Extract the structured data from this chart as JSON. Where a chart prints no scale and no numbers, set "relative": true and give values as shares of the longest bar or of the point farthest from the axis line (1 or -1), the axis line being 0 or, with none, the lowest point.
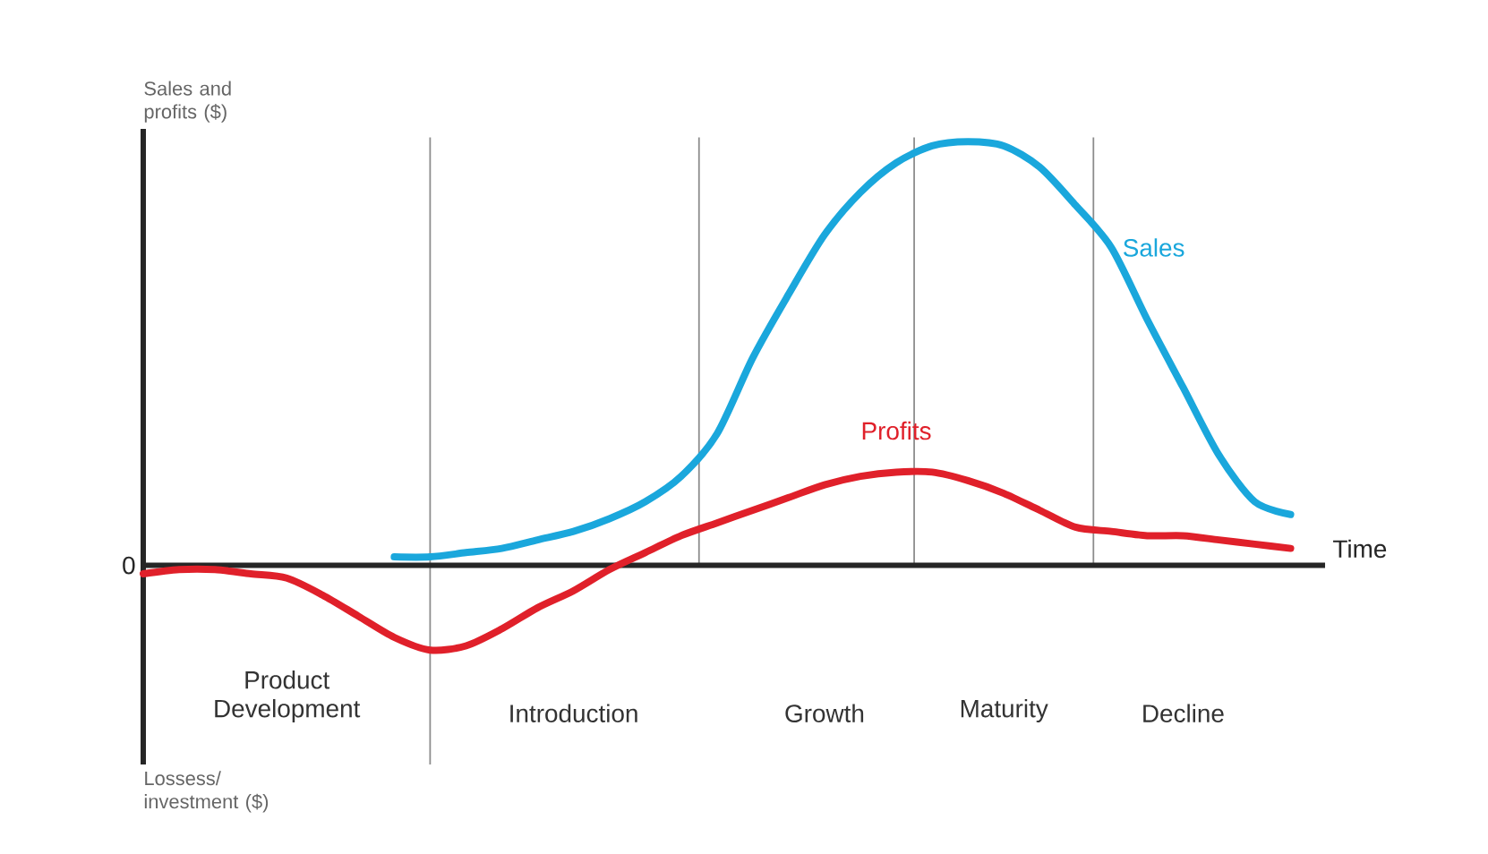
{
  "chart_data": {
    "type": "line",
    "relative": true,
    "xlabel": "Time",
    "ylabel": "Sales and profits ($)",
    "annotations": [
      "Lossess/ investment ($)",
      "0"
    ],
    "categories": [
      null,
      null,
      null,
      null,
      "Product Development",
      null,
      null,
      null,
      null,
      null,
      null,
      null,
      "Introduction",
      null,
      null,
      null,
      null,
      null,
      null,
      "Growth",
      null,
      null,
      null,
      null,
      "Maturity",
      null,
      null,
      null,
      null,
      "Decline",
      null,
      null,
      null
    ],
    "series": [
      {
        "name": "Sales",
        "color": "#1aa7dc",
        "values": [
          null,
          null,
          null,
          null,
          null,
          null,
          null,
          0.02,
          0.02,
          0.03,
          0.04,
          0.06,
          0.08,
          0.11,
          0.15,
          0.21,
          0.31,
          0.49,
          0.64,
          0.78,
          0.88,
          0.95,
          0.99,
          1.0,
          0.99,
          0.94,
          0.85,
          0.75,
          0.58,
          0.42,
          0.26,
          0.15,
          0.12
        ]
      },
      {
        "name": "Profits",
        "color": "#e0202a",
        "values": [
          -0.02,
          -0.01,
          -0.01,
          -0.02,
          -0.03,
          -0.07,
          -0.12,
          -0.17,
          -0.2,
          -0.19,
          -0.15,
          -0.1,
          -0.06,
          -0.01,
          0.03,
          0.07,
          0.1,
          0.13,
          0.16,
          0.19,
          0.21,
          0.22,
          0.22,
          0.2,
          0.17,
          0.13,
          0.09,
          0.08,
          0.07,
          0.07,
          0.06,
          0.05,
          0.04
        ]
      }
    ]
  }
}
